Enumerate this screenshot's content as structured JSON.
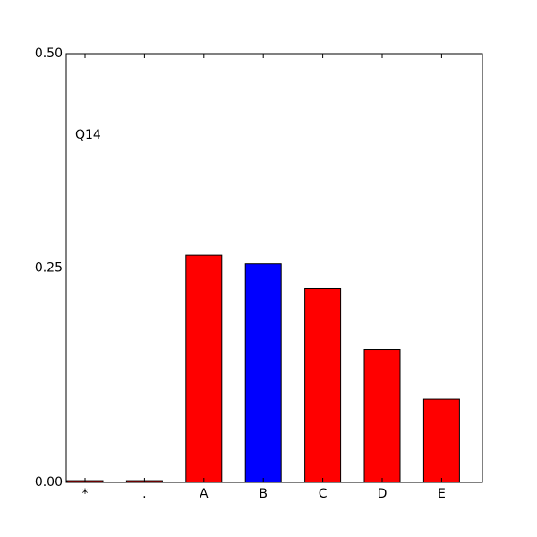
{
  "chart_data": {
    "type": "bar",
    "annotation": "Q14",
    "categories": [
      "*",
      ".",
      "A",
      "B",
      "C",
      "D",
      "E"
    ],
    "values": [
      0.002,
      0.002,
      0.265,
      0.255,
      0.226,
      0.155,
      0.097
    ],
    "colors": [
      "#ff0000",
      "#ff0000",
      "#ff0000",
      "#0000ff",
      "#ff0000",
      "#ff0000",
      "#ff0000"
    ],
    "ylim": [
      0,
      0.5
    ],
    "yticks": [
      {
        "value": 0,
        "label": "0.00"
      },
      {
        "value": 0.25,
        "label": "0.25"
      },
      {
        "value": 0.5,
        "label": "0.50"
      }
    ]
  }
}
